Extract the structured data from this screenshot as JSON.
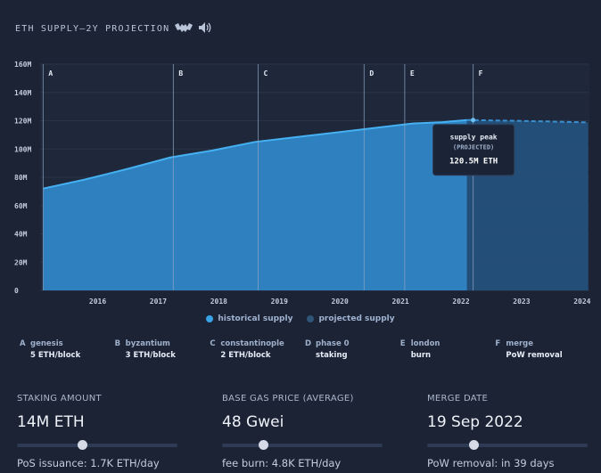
{
  "header": {
    "title": "ETH SUPPLY—2Y PROJECTION",
    "icons": [
      "bat-icon",
      "speaker-icon"
    ]
  },
  "chart_data": {
    "type": "area",
    "x_ticks": [
      "2016",
      "2017",
      "2018",
      "2019",
      "2020",
      "2021",
      "2022",
      "2023",
      "2024"
    ],
    "y_ticks": [
      "0",
      "20M",
      "40M",
      "60M",
      "80M",
      "100M",
      "120M",
      "140M",
      "160M"
    ],
    "ylim": [
      0,
      160
    ],
    "y_unit": "M ETH",
    "series": [
      {
        "name": "historical supply",
        "color": "#3a9ee0",
        "x": [
          2015.6,
          2016.3,
          2017.0,
          2017.7,
          2018.4,
          2019.1,
          2019.8,
          2020.5,
          2021.2,
          2021.7,
          2022.2,
          2022.6
        ],
        "values": [
          72,
          78.5,
          86,
          94,
          99,
          105,
          108.5,
          112,
          115.5,
          118,
          119,
          120.5
        ]
      },
      {
        "name": "projected supply",
        "color": "#2a5f8f",
        "x": [
          2022.6,
          2023.3,
          2024.0,
          2024.6
        ],
        "values": [
          120.5,
          120,
          119.4,
          118.8
        ]
      }
    ],
    "phases": [
      {
        "letter": "A",
        "x": 2015.6
      },
      {
        "letter": "B",
        "x": 2017.75
      },
      {
        "letter": "C",
        "x": 2019.15
      },
      {
        "letter": "D",
        "x": 2020.9
      },
      {
        "letter": "E",
        "x": 2021.57
      },
      {
        "letter": "F",
        "x": 2022.7
      }
    ],
    "tooltip": {
      "title": "supply peak",
      "subtitle": "(PROJECTED)",
      "value": "120.5M ETH",
      "x": 2022.7,
      "y": 120.5
    }
  },
  "legend": [
    {
      "label": "historical supply",
      "color": "#3aa3e8"
    },
    {
      "label": "projected supply",
      "color": "#2f5578"
    }
  ],
  "phase_details": [
    {
      "letter": "A",
      "name": "genesis",
      "detail": "5 ETH/block"
    },
    {
      "letter": "B",
      "name": "byzantium",
      "detail": "3 ETH/block"
    },
    {
      "letter": "C",
      "name": "constantinople",
      "detail": "2 ETH/block"
    },
    {
      "letter": "D",
      "name": "phase 0",
      "detail": "staking"
    },
    {
      "letter": "E",
      "name": "london",
      "detail": "burn"
    },
    {
      "letter": "F",
      "name": "merge",
      "detail": "PoW removal"
    }
  ],
  "controls": [
    {
      "label": "STAKING AMOUNT",
      "value": "14M ETH",
      "slider": 0.41,
      "sub": "PoS issuance: 1.7K ETH/day"
    },
    {
      "label": "BASE GAS PRICE (AVERAGE)",
      "value": "48 Gwei",
      "slider": 0.26,
      "sub": "fee burn: 4.8K ETH/day"
    },
    {
      "label": "MERGE DATE",
      "value": "19 Sep 2022",
      "slider": 0.29,
      "sub": "PoW removal: in 39 days"
    }
  ]
}
